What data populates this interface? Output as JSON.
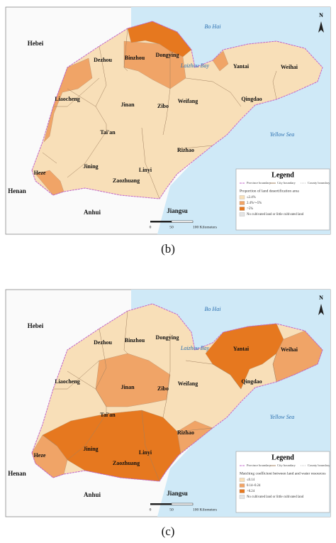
{
  "panels": [
    {
      "label": "(b)",
      "places": [
        "Bo Hai",
        "Hebei",
        "Dezhou",
        "Binzhou",
        "Dongying",
        "Laizhou Bay",
        "Yantai",
        "Weihai",
        "Liaocheng",
        "Jinan",
        "Zibo",
        "Weifang",
        "Qingdao",
        "Tai'an",
        "Yellow Sea",
        "Rizhao",
        "Jining",
        "Linyi",
        "Heze",
        "Zaozhuang",
        "Henan",
        "Anhui",
        "Jiangsu"
      ],
      "legend": {
        "title": "Legend",
        "boundaries": [
          "Province boundary",
          "City boundary",
          "County boundary"
        ],
        "subtitle": "Proportion of land desertification area",
        "items": [
          {
            "label": "≤2.4%",
            "color": "#f8dfb8"
          },
          {
            "label": "2.4%～5%",
            "color": "#f0a467"
          },
          {
            "label": ">5%",
            "color": "#e6781f"
          },
          {
            "label": "No cultivated land or little cultivated land",
            "color": "#e4e4e4"
          }
        ]
      },
      "scale": [
        "0",
        "50",
        "100 Kilometers"
      ],
      "north": "N"
    },
    {
      "label": "(c)",
      "places": [
        "Bo Hai",
        "Hebei",
        "Dezhou",
        "Binzhou",
        "Dongying",
        "Laizhou Bay",
        "Yantai",
        "Weihai",
        "Liaocheng",
        "Jinan",
        "Zibo",
        "Weifang",
        "Qingdao",
        "Tai'an",
        "Yellow Sea",
        "Rizhao",
        "Jining",
        "Linyi",
        "Heze",
        "Zaozhuang",
        "Henan",
        "Anhui",
        "Jiangsu"
      ],
      "legend": {
        "title": "Legend",
        "boundaries": [
          "Province boundary",
          "City boundary",
          "County boundary"
        ],
        "subtitle": "Matching coefficient between land and water resources",
        "items": [
          {
            "label": "≤0.14",
            "color": "#f8dfb8"
          },
          {
            "label": "0.14~0.24",
            "color": "#f0a467"
          },
          {
            "label": ">0.24",
            "color": "#e6781f"
          },
          {
            "label": "No cultivated land or little cultivated land",
            "color": "#e4e4e4"
          }
        ]
      },
      "scale": [
        "0",
        "50",
        "100 Kilometers"
      ],
      "north": "N"
    }
  ]
}
